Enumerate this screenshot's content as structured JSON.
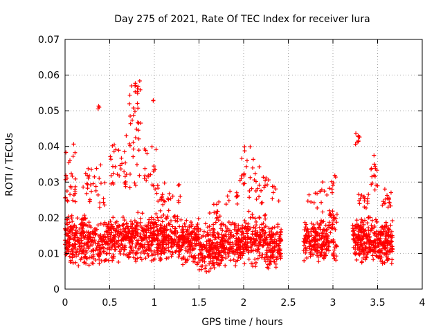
{
  "chart_data": {
    "type": "scatter",
    "title": "Day 275 of 2021, Rate Of TEC Index for receiver lura",
    "xlabel": "GPS time / hours",
    "ylabel": "ROTI / TECUs",
    "xlim": [
      0,
      4
    ],
    "ylim": [
      0,
      0.07
    ],
    "xticks": [
      "0",
      "0.5",
      "1",
      "1.5",
      "2",
      "2.5",
      "3",
      "3.5",
      "4"
    ],
    "yticks": [
      "0",
      "0.01",
      "0.02",
      "0.03",
      "0.04",
      "0.05",
      "0.06",
      "0.07"
    ],
    "grid": true,
    "marker": "+",
    "color": "#ff0000",
    "clusters": [
      {
        "x": [
          0.0,
          0.25
        ],
        "y": [
          0.006,
          0.022
        ],
        "n": 180
      },
      {
        "x": [
          0.25,
          0.5
        ],
        "y": [
          0.006,
          0.02
        ],
        "n": 140
      },
      {
        "x": [
          0.5,
          0.75
        ],
        "y": [
          0.007,
          0.021
        ],
        "n": 160
      },
      {
        "x": [
          0.75,
          1.0
        ],
        "y": [
          0.007,
          0.022
        ],
        "n": 160
      },
      {
        "x": [
          1.0,
          1.25
        ],
        "y": [
          0.007,
          0.022
        ],
        "n": 170
      },
      {
        "x": [
          1.25,
          1.5
        ],
        "y": [
          0.006,
          0.021
        ],
        "n": 170
      },
      {
        "x": [
          1.5,
          1.75
        ],
        "y": [
          0.004,
          0.02
        ],
        "n": 170
      },
      {
        "x": [
          1.75,
          2.0
        ],
        "y": [
          0.006,
          0.02
        ],
        "n": 160
      },
      {
        "x": [
          2.0,
          2.25
        ],
        "y": [
          0.006,
          0.022
        ],
        "n": 150
      },
      {
        "x": [
          2.25,
          2.42
        ],
        "y": [
          0.005,
          0.02
        ],
        "n": 120
      },
      {
        "x": [
          2.67,
          2.95
        ],
        "y": [
          0.007,
          0.02
        ],
        "n": 180
      },
      {
        "x": [
          2.95,
          3.05
        ],
        "y": [
          0.007,
          0.024
        ],
        "n": 50
      },
      {
        "x": [
          3.22,
          3.45
        ],
        "y": [
          0.007,
          0.021
        ],
        "n": 180
      },
      {
        "x": [
          3.45,
          3.67
        ],
        "y": [
          0.006,
          0.02
        ],
        "n": 170
      },
      {
        "x": [
          0.0,
          0.12
        ],
        "y": [
          0.018,
          0.042
        ],
        "n": 30
      },
      {
        "x": [
          0.2,
          0.45
        ],
        "y": [
          0.02,
          0.036
        ],
        "n": 30
      },
      {
        "x": [
          0.34,
          0.4
        ],
        "y": [
          0.05,
          0.052
        ],
        "n": 3
      },
      {
        "x": [
          0.5,
          0.7
        ],
        "y": [
          0.025,
          0.044
        ],
        "n": 30
      },
      {
        "x": [
          0.72,
          0.85
        ],
        "y": [
          0.025,
          0.06
        ],
        "n": 30
      },
      {
        "x": [
          0.78,
          0.85
        ],
        "y": [
          0.054,
          0.061
        ],
        "n": 10
      },
      {
        "x": [
          0.88,
          1.02
        ],
        "y": [
          0.025,
          0.045
        ],
        "n": 20
      },
      {
        "x": [
          0.97,
          1.0
        ],
        "y": [
          0.052,
          0.054
        ],
        "n": 2
      },
      {
        "x": [
          1.02,
          1.3
        ],
        "y": [
          0.02,
          0.03
        ],
        "n": 25
      },
      {
        "x": [
          1.6,
          1.75
        ],
        "y": [
          0.019,
          0.025
        ],
        "n": 10
      },
      {
        "x": [
          1.8,
          1.95
        ],
        "y": [
          0.022,
          0.029
        ],
        "n": 10
      },
      {
        "x": [
          1.95,
          2.15
        ],
        "y": [
          0.025,
          0.041
        ],
        "n": 25
      },
      {
        "x": [
          2.15,
          2.4
        ],
        "y": [
          0.022,
          0.035
        ],
        "n": 20
      },
      {
        "x": [
          2.7,
          2.95
        ],
        "y": [
          0.02,
          0.032
        ],
        "n": 15
      },
      {
        "x": [
          2.95,
          3.03
        ],
        "y": [
          0.022,
          0.034
        ],
        "n": 8
      },
      {
        "x": [
          3.25,
          3.32
        ],
        "y": [
          0.038,
          0.044
        ],
        "n": 8
      },
      {
        "x": [
          3.28,
          3.4
        ],
        "y": [
          0.021,
          0.028
        ],
        "n": 15
      },
      {
        "x": [
          3.42,
          3.52
        ],
        "y": [
          0.025,
          0.042
        ],
        "n": 15
      },
      {
        "x": [
          3.55,
          3.66
        ],
        "y": [
          0.02,
          0.03
        ],
        "n": 15
      }
    ]
  }
}
